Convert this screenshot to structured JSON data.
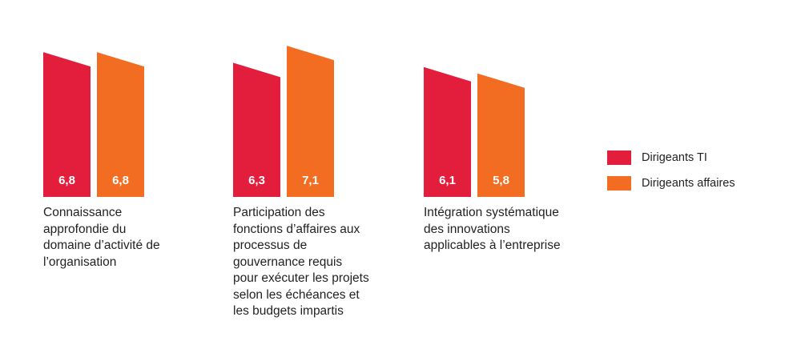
{
  "chart_data": {
    "type": "bar",
    "categories": [
      "Connaissance approfondie du domaine d’activité de l’organisation",
      "Participation des fonctions d’affaires aux processus de gouvernance requis pour exécuter les projets selon les échéances et les budgets impartis",
      "Intégration systématique des innovations applicables à l’entreprise"
    ],
    "category_lines": [
      [
        "Connaissance",
        "approfondie du",
        "domaine d’activité de",
        "l’organisation"
      ],
      [
        "Participation des",
        "fonctions d’affaires aux",
        "processus de",
        "gouvernance requis",
        "pour exécuter les projets",
        "selon les échéances et",
        "les budgets impartis"
      ],
      [
        "Intégration systématique",
        "des innovations",
        "applicables à l’entreprise"
      ]
    ],
    "series": [
      {
        "name": "Dirigeants TI",
        "color": "#e31d3c",
        "values": [
          6.8,
          6.3,
          6.1
        ],
        "labels": [
          "6,8",
          "6,3",
          "6,1"
        ]
      },
      {
        "name": "Dirigeants affaires",
        "color": "#f26d21",
        "values": [
          6.8,
          7.1,
          5.8
        ],
        "labels": [
          "6,8",
          "7,1",
          "5,8"
        ]
      }
    ],
    "legend_position": "right",
    "grid": false,
    "title": "",
    "xlabel": "",
    "ylabel": ""
  },
  "legend": {
    "items": [
      {
        "label": "Dirigeants TI",
        "color": "#e31d3c"
      },
      {
        "label": "Dirigeants affaires",
        "color": "#f26d21"
      }
    ]
  }
}
